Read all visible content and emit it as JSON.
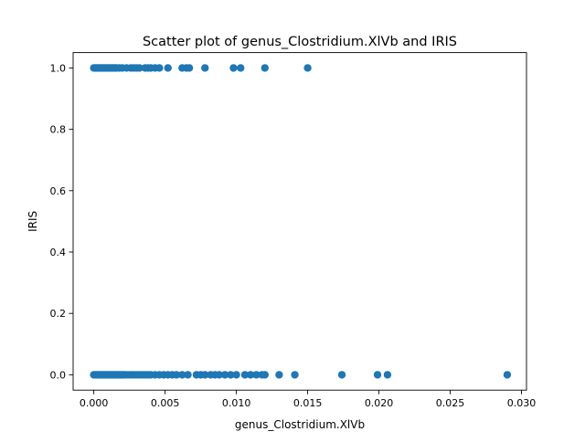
{
  "chart_data": {
    "type": "scatter",
    "title": "Scatter plot of genus_Clostridium.XlVb and IRIS",
    "xlabel": "genus_Clostridium.XlVb",
    "ylabel": "IRIS",
    "xlim": [
      -0.00145,
      0.03035
    ],
    "ylim": [
      -0.05,
      1.05
    ],
    "xticks": [
      0.0,
      0.005,
      0.01,
      0.015,
      0.02,
      0.025,
      0.03
    ],
    "xtick_labels": [
      "0.000",
      "0.005",
      "0.010",
      "0.015",
      "0.020",
      "0.025",
      "0.030"
    ],
    "yticks": [
      0.0,
      0.2,
      0.4,
      0.6,
      0.8,
      1.0
    ],
    "ytick_labels": [
      "0.0",
      "0.2",
      "0.4",
      "0.6",
      "0.8",
      "1.0"
    ],
    "grid": false,
    "marker_color": "#1f77b4",
    "series": [
      {
        "points": [
          [
            0.0,
            1
          ],
          [
            0.0001,
            1
          ],
          [
            0.0002,
            1
          ],
          [
            0.0003,
            1
          ],
          [
            0.0004,
            1
          ],
          [
            0.0005,
            1
          ],
          [
            0.0006,
            1
          ],
          [
            0.0007,
            1
          ],
          [
            0.0008,
            1
          ],
          [
            0.0009,
            1
          ],
          [
            0.001,
            1
          ],
          [
            0.0011,
            1
          ],
          [
            0.0012,
            1
          ],
          [
            0.0013,
            1
          ],
          [
            0.0014,
            1
          ],
          [
            0.0015,
            1
          ],
          [
            0.0016,
            1
          ],
          [
            0.0018,
            1
          ],
          [
            0.002,
            1
          ],
          [
            0.0023,
            1
          ],
          [
            0.0026,
            1
          ],
          [
            0.0028,
            1
          ],
          [
            0.003,
            1
          ],
          [
            0.0032,
            1
          ],
          [
            0.0036,
            1
          ],
          [
            0.0038,
            1
          ],
          [
            0.004,
            1
          ],
          [
            0.0043,
            1
          ],
          [
            0.0046,
            1
          ],
          [
            0.0052,
            1
          ],
          [
            0.0062,
            1
          ],
          [
            0.0065,
            1
          ],
          [
            0.0067,
            1
          ],
          [
            0.0078,
            1
          ],
          [
            0.0098,
            1
          ],
          [
            0.0103,
            1
          ],
          [
            0.012,
            1
          ],
          [
            0.015,
            1
          ],
          [
            0.0,
            0
          ],
          [
            0.0001,
            0
          ],
          [
            0.0002,
            0
          ],
          [
            0.0003,
            0
          ],
          [
            0.0004,
            0
          ],
          [
            0.0005,
            0
          ],
          [
            0.0006,
            0
          ],
          [
            0.0007,
            0
          ],
          [
            0.0008,
            0
          ],
          [
            0.0009,
            0
          ],
          [
            0.001,
            0
          ],
          [
            0.0011,
            0
          ],
          [
            0.0012,
            0
          ],
          [
            0.0013,
            0
          ],
          [
            0.0014,
            0
          ],
          [
            0.0015,
            0
          ],
          [
            0.0016,
            0
          ],
          [
            0.0017,
            0
          ],
          [
            0.0018,
            0
          ],
          [
            0.0019,
            0
          ],
          [
            0.002,
            0
          ],
          [
            0.0021,
            0
          ],
          [
            0.0022,
            0
          ],
          [
            0.0024,
            0
          ],
          [
            0.0026,
            0
          ],
          [
            0.0028,
            0
          ],
          [
            0.003,
            0
          ],
          [
            0.0032,
            0
          ],
          [
            0.0034,
            0
          ],
          [
            0.0036,
            0
          ],
          [
            0.0038,
            0
          ],
          [
            0.004,
            0
          ],
          [
            0.0043,
            0
          ],
          [
            0.0046,
            0
          ],
          [
            0.0049,
            0
          ],
          [
            0.0052,
            0
          ],
          [
            0.0055,
            0
          ],
          [
            0.0058,
            0
          ],
          [
            0.0062,
            0
          ],
          [
            0.0066,
            0
          ],
          [
            0.0072,
            0
          ],
          [
            0.0075,
            0
          ],
          [
            0.0078,
            0
          ],
          [
            0.0082,
            0
          ],
          [
            0.0085,
            0
          ],
          [
            0.0088,
            0
          ],
          [
            0.0092,
            0
          ],
          [
            0.0096,
            0
          ],
          [
            0.01,
            0
          ],
          [
            0.0106,
            0
          ],
          [
            0.011,
            0
          ],
          [
            0.0114,
            0
          ],
          [
            0.0118,
            0
          ],
          [
            0.012,
            0
          ],
          [
            0.013,
            0
          ],
          [
            0.0141,
            0
          ],
          [
            0.0174,
            0
          ],
          [
            0.0199,
            0
          ],
          [
            0.0206,
            0
          ],
          [
            0.029,
            0
          ]
        ]
      }
    ]
  }
}
